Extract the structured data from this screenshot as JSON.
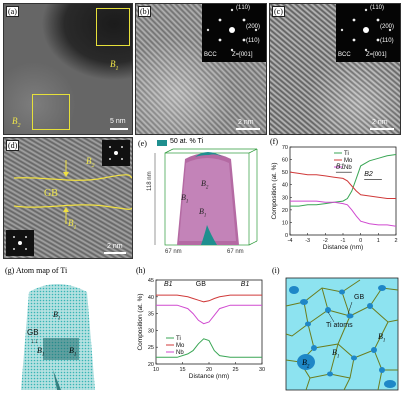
{
  "panels": {
    "a": {
      "label": "(a)",
      "scale": "5 nm",
      "region_1": "B1",
      "region_2": "B2"
    },
    "b": {
      "label": "(b)",
      "structure": "BCC",
      "zone": "Z=[001]",
      "spots": [
        "(1̅1̅0)",
        "(200)",
        "(110)"
      ],
      "scale": "2 nm"
    },
    "c": {
      "label": "(c)",
      "structure": "BCC",
      "zone": "Z=[001]",
      "spots": [
        "(1̅1̅0)",
        "(200)",
        "(110)"
      ],
      "scale": "2 nm"
    },
    "d": {
      "label": "(d)",
      "gb": "GB",
      "region_top": "B2",
      "region_bottom": "B1",
      "scale": "2 nm"
    },
    "e": {
      "label": "(e)",
      "legend": "50 at. % Ti",
      "dim_height": "118 nm",
      "dim_x": "67 nm",
      "dim_y": "67 nm",
      "region_1": "B1",
      "region_2": "B2"
    },
    "g": {
      "caption": "(g) Atom map of Ti",
      "gb": "GB",
      "region": "B1"
    },
    "i": {
      "label": "(i)",
      "gb": "GB",
      "ti": "Ti atoms",
      "region_1": "B1",
      "region_2": "B2"
    }
  },
  "chart_data": [
    {
      "panel": "(f)",
      "type": "line",
      "xlabel": "Distance (nm)",
      "ylabel": "Composition (at. %)",
      "xlim": [
        -4,
        2
      ],
      "ylim": [
        0,
        70
      ],
      "xticks": [
        "-4",
        "-3",
        "-2",
        "-1",
        "0",
        "1",
        "2"
      ],
      "yticks": [
        "0",
        "10",
        "20",
        "30",
        "40",
        "50",
        "60",
        "70"
      ],
      "annotations": [
        "B1",
        "B2"
      ],
      "series": [
        {
          "name": "Ti",
          "color": "#3aa655",
          "x": [
            -4,
            -3.5,
            -3,
            -2.5,
            -2,
            -1.5,
            -1,
            -0.75,
            -0.5,
            -0.25,
            0,
            0.5,
            1,
            1.5,
            2
          ],
          "y": [
            23,
            23,
            24,
            24,
            25,
            26,
            27,
            29,
            35,
            45,
            55,
            59,
            61,
            63,
            64
          ]
        },
        {
          "name": "Mo",
          "color": "#d03a3a",
          "x": [
            -4,
            -3.5,
            -3,
            -2.5,
            -2,
            -1.5,
            -1,
            -0.75,
            -0.5,
            -0.25,
            0,
            0.5,
            1,
            1.5,
            2
          ],
          "y": [
            50,
            49,
            48,
            48,
            47,
            46,
            45,
            43,
            39,
            35,
            32,
            31,
            30,
            29,
            29
          ]
        },
        {
          "name": "Nb",
          "color": "#d04ad0",
          "x": [
            -4,
            -3.5,
            -3,
            -2.5,
            -2,
            -1.5,
            -1,
            -0.75,
            -0.5,
            -0.25,
            0,
            0.5,
            1,
            1.5,
            2
          ],
          "y": [
            27,
            27,
            27,
            27,
            26,
            26,
            25,
            24,
            20,
            15,
            11,
            9,
            8,
            8,
            7
          ]
        }
      ]
    },
    {
      "panel": "(h)",
      "type": "line",
      "xlabel": "Distance (nm)",
      "ylabel": "Composition (at. %)",
      "xlim": [
        10,
        30
      ],
      "ylim": [
        20,
        45
      ],
      "xticks": [
        "10",
        "15",
        "20",
        "25",
        "30"
      ],
      "yticks": [
        "20",
        "25",
        "30",
        "35",
        "40",
        "45"
      ],
      "annotations": [
        "B1",
        "GB",
        "B1"
      ],
      "series": [
        {
          "name": "Ti",
          "color": "#3aa655",
          "x": [
            10,
            12,
            14,
            16,
            17,
            18,
            19,
            20,
            21,
            22,
            24,
            26,
            28,
            30
          ],
          "y": [
            22,
            22,
            22,
            23,
            24,
            26,
            27.5,
            27,
            24,
            22.5,
            22,
            22,
            22,
            22
          ]
        },
        {
          "name": "Mo",
          "color": "#d03a3a",
          "x": [
            10,
            12,
            14,
            16,
            17,
            18,
            19,
            20,
            21,
            22,
            24,
            26,
            28,
            30
          ],
          "y": [
            40.5,
            40.5,
            40.5,
            40,
            39.5,
            39,
            38.5,
            38.8,
            39.5,
            40,
            40.5,
            40.5,
            40.5,
            40.5
          ]
        },
        {
          "name": "Nb",
          "color": "#d04ad0",
          "x": [
            10,
            12,
            14,
            16,
            17,
            18,
            19,
            20,
            21,
            22,
            24,
            26,
            28,
            30
          ],
          "y": [
            37.5,
            37.5,
            37.5,
            36.5,
            35,
            33,
            32,
            32.5,
            34.5,
            36.5,
            37.5,
            37.5,
            37.5,
            37.5
          ]
        }
      ]
    }
  ]
}
